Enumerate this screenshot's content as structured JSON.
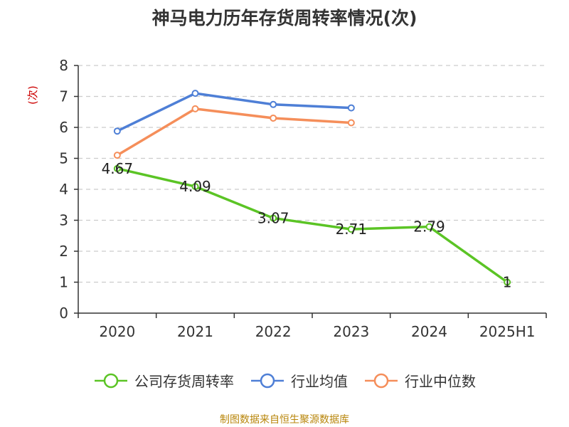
{
  "chart_data": {
    "type": "line",
    "title": "神马电力历年存货周转率情况(次)",
    "ylabel": "(次)",
    "xlabel": "",
    "categories": [
      "2020",
      "2021",
      "2022",
      "2023",
      "2024",
      "2025H1"
    ],
    "ylim": [
      0,
      8
    ],
    "yticks": [
      0,
      1,
      2,
      3,
      4,
      5,
      6,
      7,
      8
    ],
    "grid": true,
    "legend_position": "bottom",
    "series": [
      {
        "name": "公司存货周转率",
        "color": "#5bc425",
        "values": [
          4.67,
          4.09,
          3.07,
          2.71,
          2.79,
          1
        ],
        "labels": [
          "4.67",
          "4.09",
          "3.07",
          "2.71",
          "2.79",
          "1"
        ]
      },
      {
        "name": "行业均值",
        "color": "#4e7fd6",
        "values": [
          5.88,
          7.1,
          6.74,
          6.63,
          null,
          null
        ]
      },
      {
        "name": "行业中位数",
        "color": "#f58e5a",
        "values": [
          5.1,
          6.6,
          6.3,
          6.15,
          null,
          null
        ]
      }
    ]
  },
  "source": "制图数据来自恒生聚源数据库"
}
